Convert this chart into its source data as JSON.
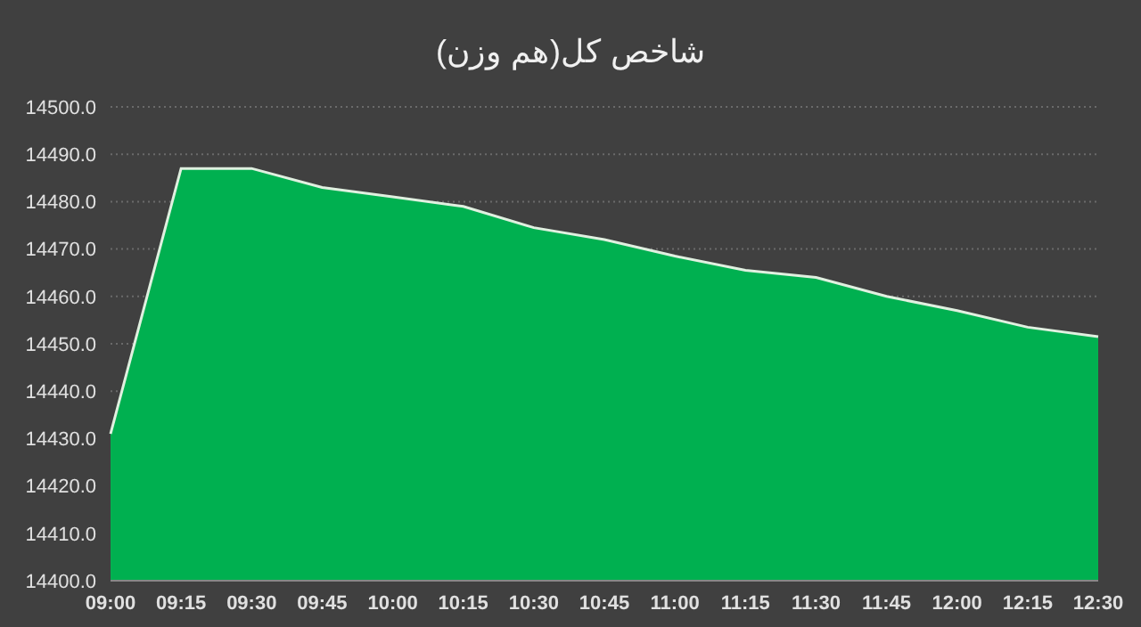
{
  "chart_data": {
    "type": "area",
    "title": "شاخص کل(هم وزن)",
    "categories": [
      "09:00",
      "09:15",
      "09:30",
      "09:45",
      "10:00",
      "10:15",
      "10:30",
      "10:45",
      "11:00",
      "11:15",
      "11:30",
      "11:45",
      "12:00",
      "12:15",
      "12:30"
    ],
    "series": [
      {
        "color": "#00b050",
        "values": [
          14431,
          14487,
          14487,
          14483,
          14481,
          14479,
          14474.5,
          14472,
          14468.5,
          14465.5,
          14464,
          14460,
          14457,
          14453.5,
          14451.5
        ]
      }
    ],
    "ylim": [
      14400,
      14500
    ],
    "yticks": [
      {
        "value": 14400,
        "label": "14400.0"
      },
      {
        "value": 14410,
        "label": "14410.0"
      },
      {
        "value": 14420,
        "label": "14420.0"
      },
      {
        "value": 14430,
        "label": "14430.0"
      },
      {
        "value": 14440,
        "label": "14440.0"
      },
      {
        "value": 14450,
        "label": "14450.0"
      },
      {
        "value": 14460,
        "label": "14460.0"
      },
      {
        "value": 14470,
        "label": "14470.0"
      },
      {
        "value": 14480,
        "label": "14480.0"
      },
      {
        "value": 14490,
        "label": "14490.0"
      },
      {
        "value": 14500,
        "label": "14500.0"
      }
    ],
    "grid": "y",
    "legend": false
  }
}
